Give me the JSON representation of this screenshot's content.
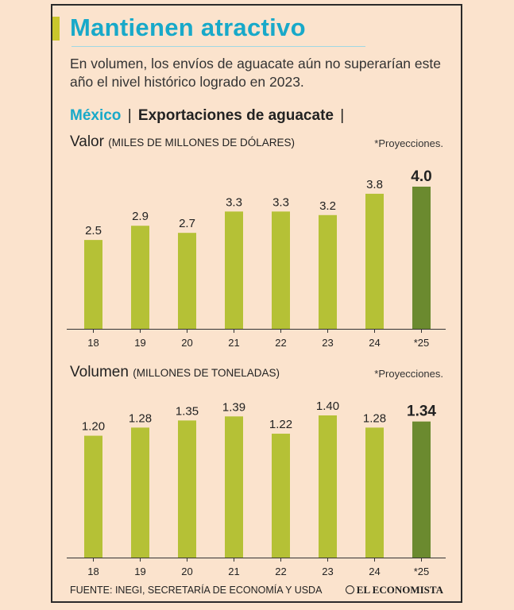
{
  "title": "Mantienen atractivo",
  "subtitle": "En volumen, los envíos de aguacate aún no superarían este año el nivel histórico logrado en 2023.",
  "section": {
    "country": "México",
    "sep1": "|",
    "topic": "Exportaciones de aguacate",
    "sep2": "|"
  },
  "source": "FUENTE: INEGI, SECRETARÍA DE ECONOMÍA Y USDA",
  "logo": "EL ECONOMISTA",
  "colors": {
    "bar": "#b5c136",
    "bar_projection": "#6b8a2f",
    "title": "#18a9c9"
  },
  "chart_data": [
    {
      "type": "bar",
      "title": "Valor",
      "unit": "(MILES DE MILLONES DE DÓLARES)",
      "note": "*Proyecciones.",
      "categories": [
        "18",
        "19",
        "20",
        "21",
        "22",
        "23",
        "24",
        "*25"
      ],
      "values": [
        2.5,
        2.9,
        2.7,
        3.3,
        3.3,
        3.2,
        3.8,
        4.0
      ],
      "labels": [
        "2.5",
        "2.9",
        "2.7",
        "3.3",
        "3.3",
        "3.2",
        "3.8",
        "4.0"
      ],
      "projection_index": 7,
      "ylim": [
        0,
        4.0
      ]
    },
    {
      "type": "bar",
      "title": "Volumen",
      "unit": "(MILLONES DE TONELADAS)",
      "note": "*Proyecciones.",
      "categories": [
        "18",
        "19",
        "20",
        "21",
        "22",
        "23",
        "24",
        "*25"
      ],
      "values": [
        1.2,
        1.28,
        1.35,
        1.39,
        1.22,
        1.4,
        1.28,
        1.34
      ],
      "labels": [
        "1.20",
        "1.28",
        "1.35",
        "1.39",
        "1.22",
        "1.40",
        "1.28",
        "1.34"
      ],
      "projection_index": 7,
      "ylim": [
        0,
        1.4
      ]
    }
  ]
}
